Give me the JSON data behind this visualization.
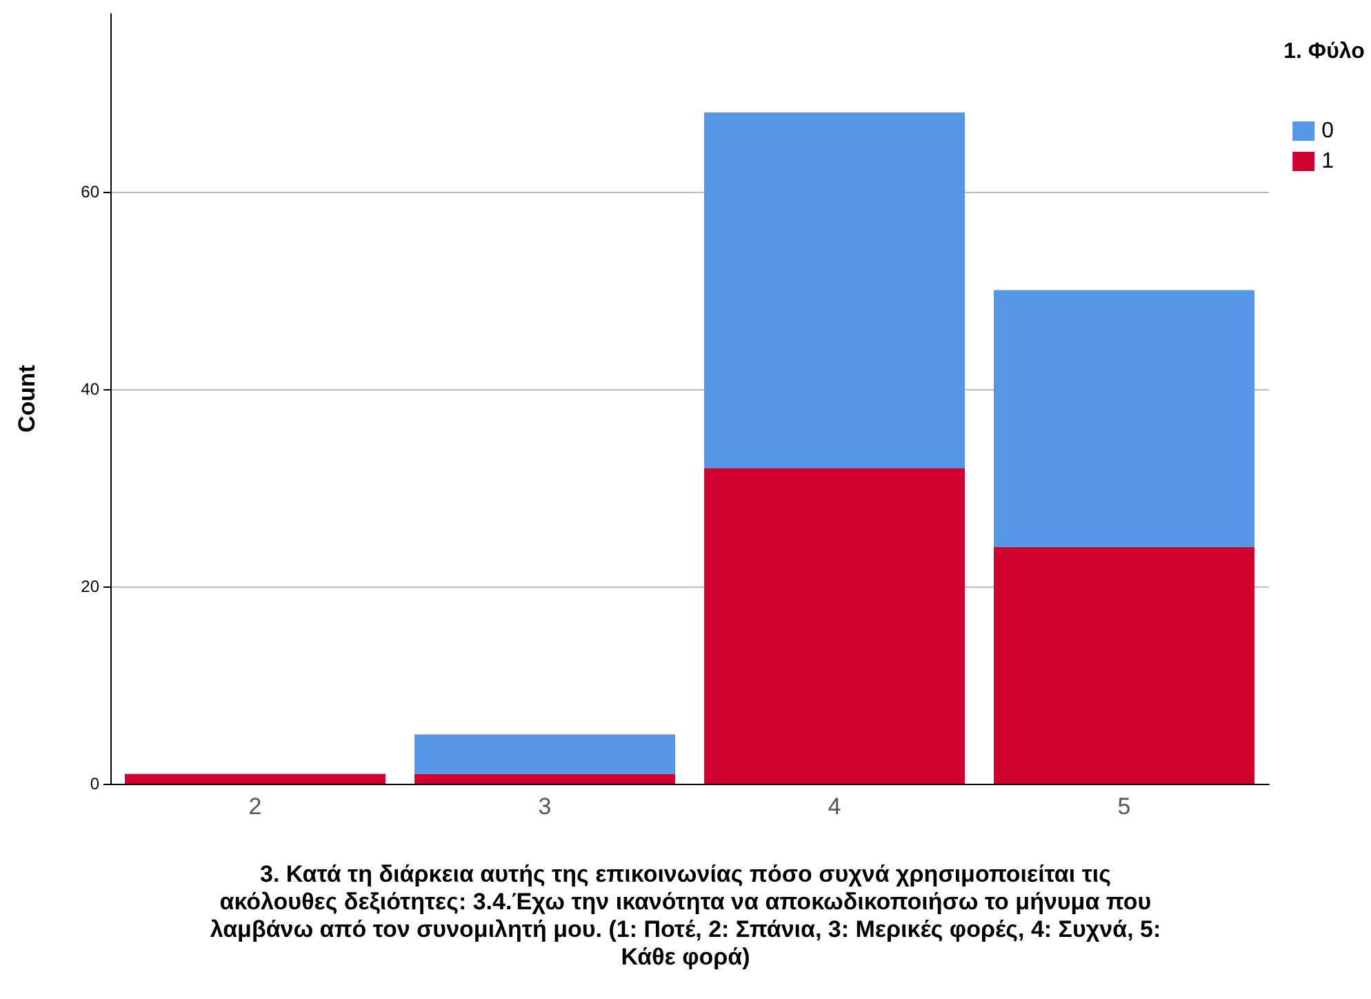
{
  "chart_data": {
    "type": "bar",
    "xlabel": "3. Κατά τη διάρκεια αυτής της επικοινωνίας πόσο συχνά χρησιμοποιείται τις ακόλουθες δεξιότητες: 3.4.Έχω την ικανότητα να αποκωδικοποιήσω το μήνυμα που λαμβάνω από τον συνομιλητή μου. (1: Ποτέ, 2: Σπάνια, 3: Μερικές φορές, 4: Συχνά, 5: Κάθε φορά)",
    "ylabel": "Count",
    "legend_title": "1. Φύλο",
    "categories": [
      "2",
      "3",
      "4",
      "5"
    ],
    "stacked": true,
    "series": [
      {
        "name": "1",
        "color": "#d2002f",
        "values": [
          1,
          1,
          32,
          24
        ]
      },
      {
        "name": "0",
        "color": "#5596e6",
        "values": [
          0,
          4,
          36,
          26
        ]
      }
    ],
    "ylim": [
      0,
      78
    ],
    "yticks": [
      0,
      20,
      40,
      60
    ],
    "grid": "y",
    "legend": "top right"
  }
}
